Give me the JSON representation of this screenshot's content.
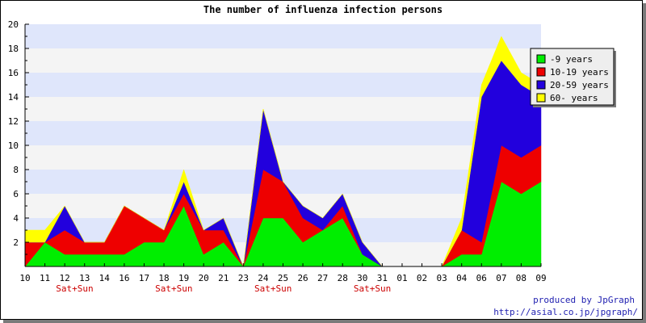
{
  "chart_data": {
    "type": "area",
    "stacked": true,
    "title": "The number of influenza infection persons",
    "x_labels": [
      "10",
      "11",
      "12",
      "13",
      "14",
      "16",
      "17",
      "18",
      "19",
      "20",
      "21",
      "23",
      "24",
      "25",
      "26",
      "27",
      "28",
      "30",
      "31",
      "01",
      "02",
      "03",
      "04",
      "06",
      "07",
      "08",
      "09"
    ],
    "weekend_labels": [
      {
        "index": 3,
        "text": "Sat+Sun"
      },
      {
        "index": 8,
        "text": "Sat+Sun"
      },
      {
        "index": 13,
        "text": "Sat+Sun"
      },
      {
        "index": 18,
        "text": "Sat+Sun"
      }
    ],
    "ylim": [
      0,
      20
    ],
    "y_ticks": [
      2,
      4,
      6,
      8,
      10,
      12,
      14,
      16,
      18,
      20
    ],
    "grid": "horizontal alternating bands",
    "band_colors": [
      "#dfe6fb",
      "#f4f4f4"
    ],
    "legend_position": "top-right",
    "series": [
      {
        "name": "-9 years",
        "color": "#00ee00",
        "values": [
          0,
          2,
          1,
          1,
          1,
          1,
          2,
          2,
          5,
          1,
          2,
          0,
          4,
          4,
          2,
          3,
          4,
          1,
          0,
          0,
          0,
          0,
          1,
          1,
          7,
          6,
          7
        ]
      },
      {
        "name": "10-19 years",
        "color": "#ee0000",
        "values": [
          2,
          0,
          2,
          1,
          1,
          4,
          2,
          1,
          1,
          2,
          1,
          0,
          4,
          3,
          2,
          0,
          1,
          0,
          0,
          0,
          0,
          0,
          2,
          1,
          3,
          3,
          3
        ]
      },
      {
        "name": "20-59 years",
        "color": "#2200dd",
        "values": [
          0,
          0,
          2,
          0,
          0,
          0,
          0,
          0,
          1,
          0,
          1,
          0,
          5,
          0,
          1,
          1,
          1,
          1,
          0,
          0,
          0,
          0,
          0,
          12,
          7,
          6,
          4
        ]
      },
      {
        "name": "60- years",
        "color": "#ffff00",
        "values": [
          1,
          1,
          0,
          0,
          0,
          0,
          0,
          0,
          1,
          0,
          0,
          0,
          0,
          0,
          0,
          0,
          0,
          0,
          0,
          0,
          0,
          0,
          1,
          1,
          2,
          1,
          1
        ]
      }
    ]
  },
  "credit": {
    "line1": "produced by JpGraph",
    "line2": "http://asial.co.jp/jpgraph/"
  }
}
